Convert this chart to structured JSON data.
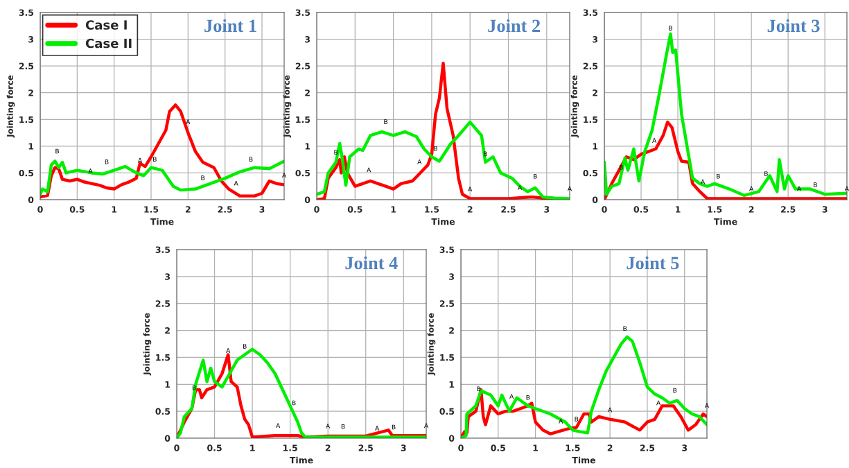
{
  "chart_data": [
    {
      "type": "line",
      "title": "Joint 1",
      "xlabel": "Time",
      "ylabel": "Jointing force",
      "xlim": [
        0,
        3.3
      ],
      "ylim": [
        0,
        3.5
      ],
      "xticks": [
        0,
        0.5,
        1,
        1.5,
        2,
        2.5,
        3
      ],
      "yticks": [
        0,
        0.5,
        1,
        1.5,
        2,
        2.5,
        3,
        3.5
      ],
      "grid": true,
      "legend": "top left",
      "series": [
        {
          "name": "Case I",
          "color": "#ff0000",
          "x": [
            0,
            0.1,
            0.15,
            0.2,
            0.25,
            0.3,
            0.4,
            0.5,
            0.6,
            0.7,
            0.8,
            0.9,
            1.0,
            1.1,
            1.2,
            1.3,
            1.35,
            1.42,
            1.5,
            1.6,
            1.7,
            1.75,
            1.83,
            1.9,
            2.0,
            2.1,
            2.2,
            2.35,
            2.45,
            2.55,
            2.7,
            2.9,
            3.0,
            3.1,
            3.2,
            3.3
          ],
          "values": [
            0.05,
            0.08,
            0.45,
            0.6,
            0.58,
            0.38,
            0.35,
            0.38,
            0.33,
            0.3,
            0.27,
            0.22,
            0.2,
            0.28,
            0.33,
            0.4,
            0.68,
            0.62,
            0.8,
            1.05,
            1.3,
            1.65,
            1.77,
            1.65,
            1.25,
            0.9,
            0.7,
            0.6,
            0.35,
            0.2,
            0.07,
            0.07,
            0.12,
            0.35,
            0.3,
            0.28
          ]
        },
        {
          "name": "Case II",
          "color": "#00ee00",
          "x": [
            0,
            0.03,
            0.1,
            0.15,
            0.2,
            0.25,
            0.3,
            0.35,
            0.5,
            0.7,
            0.85,
            1.0,
            1.15,
            1.3,
            1.4,
            1.5,
            1.65,
            1.8,
            1.9,
            2.1,
            2.3,
            2.5,
            2.7,
            2.9,
            3.1,
            3.3
          ],
          "values": [
            0.1,
            0.2,
            0.15,
            0.65,
            0.72,
            0.6,
            0.7,
            0.5,
            0.55,
            0.5,
            0.48,
            0.55,
            0.62,
            0.5,
            0.45,
            0.6,
            0.55,
            0.25,
            0.18,
            0.2,
            0.3,
            0.4,
            0.52,
            0.6,
            0.58,
            0.72
          ]
        }
      ],
      "annotations": [
        {
          "text": "A",
          "x": 0.68,
          "y": 0.38
        },
        {
          "text": "A",
          "x": 1.35,
          "y": 0.58
        },
        {
          "text": "A",
          "x": 2.0,
          "y": 1.3
        },
        {
          "text": "A",
          "x": 2.65,
          "y": 0.15
        },
        {
          "text": "A",
          "x": 3.3,
          "y": 0.3
        },
        {
          "text": "B",
          "x": 0.23,
          "y": 0.75
        },
        {
          "text": "B",
          "x": 0.9,
          "y": 0.55
        },
        {
          "text": "B",
          "x": 1.55,
          "y": 0.6
        },
        {
          "text": "B",
          "x": 2.2,
          "y": 0.25
        },
        {
          "text": "B",
          "x": 2.85,
          "y": 0.6
        }
      ]
    },
    {
      "type": "line",
      "title": "Joint 2",
      "xlabel": "Time",
      "ylabel": "Jointing force",
      "xlim": [
        0,
        3.3
      ],
      "ylim": [
        0,
        3.5
      ],
      "xticks": [
        0,
        0.5,
        1,
        1.5,
        2,
        2.5,
        3
      ],
      "yticks": [
        0,
        0.5,
        1,
        1.5,
        2,
        2.5,
        3,
        3.5
      ],
      "grid": true,
      "series": [
        {
          "color": "#ff0000",
          "x": [
            0,
            0.1,
            0.15,
            0.25,
            0.3,
            0.32,
            0.36,
            0.4,
            0.5,
            0.6,
            0.7,
            0.8,
            0.9,
            1.0,
            1.1,
            1.25,
            1.35,
            1.45,
            1.5,
            1.55,
            1.6,
            1.65,
            1.7,
            1.78,
            1.85,
            1.9,
            2.0,
            2.5,
            2.8,
            2.9,
            3.0,
            3.1
          ],
          "values": [
            0,
            0.02,
            0.4,
            0.6,
            0.75,
            0.5,
            0.8,
            0.5,
            0.25,
            0.3,
            0.35,
            0.3,
            0.25,
            0.2,
            0.3,
            0.35,
            0.5,
            0.65,
            0.85,
            1.6,
            1.9,
            2.55,
            1.7,
            1.2,
            0.4,
            0.1,
            0.02,
            0.02,
            0.05,
            0.04,
            0,
            0
          ]
        },
        {
          "color": "#00ee00",
          "x": [
            0,
            0.1,
            0.15,
            0.25,
            0.3,
            0.33,
            0.38,
            0.43,
            0.55,
            0.6,
            0.7,
            0.85,
            1.0,
            1.15,
            1.3,
            1.4,
            1.5,
            1.6,
            1.75,
            1.85,
            2.0,
            2.15,
            2.2,
            2.3,
            2.4,
            2.55,
            2.65,
            2.75,
            2.85,
            2.95,
            3.1,
            3.3
          ],
          "values": [
            0.1,
            0.15,
            0.5,
            0.7,
            1.05,
            0.8,
            0.27,
            0.8,
            0.95,
            0.92,
            1.2,
            1.27,
            1.2,
            1.27,
            1.18,
            0.95,
            0.8,
            0.72,
            1.05,
            1.2,
            1.45,
            1.2,
            0.7,
            0.8,
            0.5,
            0.4,
            0.25,
            0.15,
            0.22,
            0.05,
            0.03,
            0.02
          ]
        }
      ],
      "annotations": [
        {
          "text": "A",
          "x": 0.68,
          "y": 0.4
        },
        {
          "text": "A",
          "x": 1.34,
          "y": 0.55
        },
        {
          "text": "A",
          "x": 2.0,
          "y": 0.04
        },
        {
          "text": "A",
          "x": 2.65,
          "y": 0.07
        },
        {
          "text": "A",
          "x": 3.3,
          "y": 0.05
        },
        {
          "text": "B",
          "x": 0.25,
          "y": 0.73
        },
        {
          "text": "B",
          "x": 0.9,
          "y": 1.3
        },
        {
          "text": "B",
          "x": 1.55,
          "y": 0.8
        },
        {
          "text": "B",
          "x": 2.2,
          "y": 0.7
        },
        {
          "text": "B",
          "x": 2.85,
          "y": 0.28
        }
      ]
    },
    {
      "type": "line",
      "title": "Joint 3",
      "xlabel": "Time",
      "ylabel": "Jointing force",
      "xlim": [
        0,
        3.3
      ],
      "ylim": [
        0,
        3.5
      ],
      "xticks": [
        0,
        0.5,
        1,
        1.5,
        2,
        2.5,
        3
      ],
      "yticks": [
        0,
        0.5,
        1,
        1.5,
        2,
        2.5,
        3,
        3.5
      ],
      "grid": true,
      "series": [
        {
          "color": "#ff0000",
          "x": [
            0,
            0.1,
            0.2,
            0.3,
            0.4,
            0.5,
            0.6,
            0.7,
            0.8,
            0.86,
            0.92,
            1.0,
            1.05,
            1.15,
            1.2,
            1.3,
            1.4,
            2.0,
            3.3
          ],
          "values": [
            0,
            0.3,
            0.55,
            0.8,
            0.75,
            0.85,
            0.9,
            0.95,
            1.2,
            1.45,
            1.35,
            0.9,
            0.72,
            0.7,
            0.3,
            0.15,
            0.02,
            0.02,
            0.02
          ]
        },
        {
          "color": "#00ee00",
          "x": [
            0,
            0.03,
            0.1,
            0.2,
            0.28,
            0.32,
            0.4,
            0.47,
            0.55,
            0.65,
            0.75,
            0.85,
            0.9,
            0.93,
            0.97,
            1.05,
            1.15,
            1.2,
            1.3,
            1.4,
            1.5,
            1.7,
            1.9,
            2.1,
            2.25,
            2.35,
            2.38,
            2.45,
            2.5,
            2.6,
            2.8,
            3.0,
            3.3
          ],
          "values": [
            0.7,
            0.1,
            0.25,
            0.3,
            0.78,
            0.55,
            0.95,
            0.35,
            0.9,
            1.3,
            2.0,
            2.75,
            3.1,
            2.75,
            2.8,
            1.6,
            0.8,
            0.4,
            0.3,
            0.25,
            0.3,
            0.2,
            0.08,
            0.15,
            0.45,
            0.15,
            0.75,
            0.2,
            0.45,
            0.2,
            0.2,
            0.1,
            0.12
          ]
        }
      ],
      "annotations": [
        {
          "text": "A",
          "x": 0.68,
          "y": 0.95
        },
        {
          "text": "A",
          "x": 1.34,
          "y": 0.18
        },
        {
          "text": "A",
          "x": 2.0,
          "y": 0.05
        },
        {
          "text": "A",
          "x": 2.65,
          "y": 0.05
        },
        {
          "text": "A",
          "x": 3.3,
          "y": 0.05
        },
        {
          "text": "B",
          "x": 0.23,
          "y": 0.45
        },
        {
          "text": "B",
          "x": 0.9,
          "y": 3.05
        },
        {
          "text": "B",
          "x": 1.55,
          "y": 0.28
        },
        {
          "text": "B",
          "x": 2.2,
          "y": 0.33
        },
        {
          "text": "B",
          "x": 2.87,
          "y": 0.12
        }
      ]
    },
    {
      "type": "line",
      "title": "Joint 4",
      "xlabel": "Time",
      "ylabel": "Jointing force",
      "xlim": [
        0,
        3.3
      ],
      "ylim": [
        0,
        3.5
      ],
      "xticks": [
        0,
        0.5,
        1,
        1.5,
        2,
        2.5,
        3
      ],
      "yticks": [
        0,
        0.5,
        1,
        1.5,
        2,
        2.5,
        3,
        3.5
      ],
      "grid": true,
      "series": [
        {
          "color": "#ff0000",
          "x": [
            0,
            0.1,
            0.2,
            0.25,
            0.3,
            0.33,
            0.4,
            0.5,
            0.6,
            0.68,
            0.72,
            0.8,
            0.85,
            0.9,
            0.95,
            1.0,
            1.3,
            1.6,
            1.7,
            2.0,
            2.5,
            2.8,
            2.85,
            3.3
          ],
          "values": [
            0,
            0.3,
            0.55,
            0.9,
            0.9,
            0.75,
            0.9,
            0.95,
            1.2,
            1.55,
            1.05,
            0.95,
            0.6,
            0.35,
            0.25,
            0.02,
            0.05,
            0.05,
            0.02,
            0.04,
            0.04,
            0.15,
            0.05,
            0.05
          ]
        },
        {
          "color": "#00ee00",
          "x": [
            0,
            0.05,
            0.1,
            0.2,
            0.25,
            0.35,
            0.4,
            0.45,
            0.5,
            0.6,
            0.7,
            0.8,
            0.9,
            1.0,
            1.1,
            1.2,
            1.3,
            1.4,
            1.5,
            1.6,
            1.65,
            1.7,
            2.0,
            3.3
          ],
          "values": [
            0,
            0.1,
            0.4,
            0.55,
            1.0,
            1.45,
            1.05,
            1.3,
            1.05,
            0.95,
            1.2,
            1.45,
            1.55,
            1.65,
            1.55,
            1.4,
            1.2,
            0.9,
            0.6,
            0.3,
            0.1,
            0.02,
            0.02,
            0.02
          ]
        }
      ],
      "annotations": [
        {
          "text": "A",
          "x": 0.68,
          "y": 1.47
        },
        {
          "text": "A",
          "x": 1.34,
          "y": 0.08
        },
        {
          "text": "A",
          "x": 2.0,
          "y": 0.07
        },
        {
          "text": "A",
          "x": 2.65,
          "y": 0.03
        },
        {
          "text": "A",
          "x": 3.3,
          "y": 0.08
        },
        {
          "text": "B",
          "x": 0.23,
          "y": 0.78
        },
        {
          "text": "B",
          "x": 0.9,
          "y": 1.55
        },
        {
          "text": "B",
          "x": 1.55,
          "y": 0.5
        },
        {
          "text": "B",
          "x": 2.2,
          "y": 0.06
        },
        {
          "text": "B",
          "x": 2.87,
          "y": 0.05
        }
      ]
    },
    {
      "type": "line",
      "title": "Joint 5",
      "xlabel": "Time",
      "ylabel": "Jointing force",
      "xlim": [
        0,
        3.3
      ],
      "ylim": [
        0,
        3.5
      ],
      "xticks": [
        0,
        0.5,
        1,
        1.5,
        2,
        2.5,
        3
      ],
      "yticks": [
        0,
        0.5,
        1,
        1.5,
        2,
        2.5,
        3,
        3.5
      ],
      "grid": true,
      "series": [
        {
          "color": "#ff0000",
          "x": [
            0,
            0.05,
            0.08,
            0.1,
            0.2,
            0.27,
            0.3,
            0.33,
            0.4,
            0.5,
            0.6,
            0.7,
            0.8,
            0.9,
            0.95,
            1.0,
            1.1,
            1.2,
            1.3,
            1.45,
            1.55,
            1.65,
            1.72,
            1.75,
            1.85,
            2.0,
            2.2,
            2.4,
            2.5,
            2.6,
            2.7,
            2.85,
            2.95,
            3.05,
            3.15,
            3.25,
            3.3
          ],
          "values": [
            0,
            0.12,
            0.1,
            0.4,
            0.5,
            0.9,
            0.4,
            0.25,
            0.6,
            0.45,
            0.5,
            0.5,
            0.55,
            0.6,
            0.65,
            0.3,
            0.15,
            0.08,
            0.12,
            0.18,
            0.2,
            0.45,
            0.45,
            0.3,
            0.4,
            0.35,
            0.3,
            0.15,
            0.3,
            0.35,
            0.6,
            0.6,
            0.4,
            0.15,
            0.25,
            0.45,
            0.4
          ]
        },
        {
          "color": "#00ee00",
          "x": [
            0,
            0.07,
            0.08,
            0.2,
            0.27,
            0.4,
            0.5,
            0.55,
            0.65,
            0.75,
            0.9,
            1.0,
            1.2,
            1.4,
            1.5,
            1.6,
            1.7,
            1.75,
            1.85,
            1.95,
            2.05,
            2.15,
            2.23,
            2.3,
            2.4,
            2.5,
            2.6,
            2.7,
            2.8,
            2.9,
            3.0,
            3.1,
            3.2,
            3.3
          ],
          "values": [
            0,
            0.05,
            0.45,
            0.6,
            0.88,
            0.8,
            0.6,
            0.8,
            0.5,
            0.75,
            0.6,
            0.55,
            0.45,
            0.3,
            0.15,
            0.12,
            0.1,
            0.5,
            0.9,
            1.25,
            1.5,
            1.75,
            1.88,
            1.8,
            1.4,
            0.95,
            0.82,
            0.75,
            0.65,
            0.7,
            0.55,
            0.45,
            0.4,
            0.25
          ]
        }
      ],
      "annotations": [
        {
          "text": "A",
          "x": 0.68,
          "y": 0.62
        },
        {
          "text": "A",
          "x": 1.34,
          "y": 0.16
        },
        {
          "text": "A",
          "x": 2.0,
          "y": 0.37
        },
        {
          "text": "A",
          "x": 2.65,
          "y": 0.5
        },
        {
          "text": "A",
          "x": 3.3,
          "y": 0.45
        },
        {
          "text": "B",
          "x": 0.24,
          "y": 0.76
        },
        {
          "text": "B",
          "x": 0.9,
          "y": 0.6
        },
        {
          "text": "B",
          "x": 1.55,
          "y": 0.2
        },
        {
          "text": "B",
          "x": 2.2,
          "y": 1.88
        },
        {
          "text": "B",
          "x": 2.87,
          "y": 0.73
        }
      ]
    }
  ]
}
